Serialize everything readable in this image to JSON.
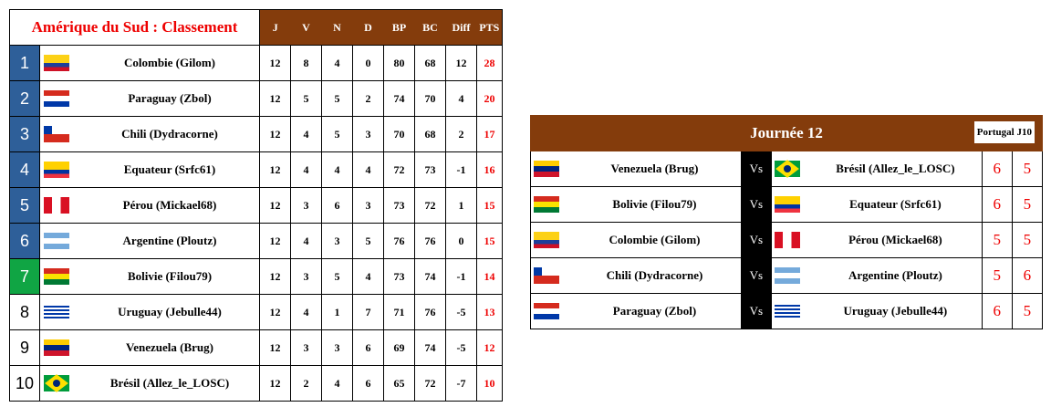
{
  "standings": {
    "title": "Amérique du Sud : Classement",
    "columns": [
      "J",
      "V",
      "N",
      "D",
      "BP",
      "BC",
      "Diff",
      "PTS"
    ],
    "rows": [
      {
        "rank": "1",
        "flag": "colombia",
        "team": "Colombie (Gilom)",
        "J": "12",
        "V": "8",
        "N": "4",
        "D": "0",
        "BP": "80",
        "BC": "68",
        "Diff": "12",
        "PTS": "28",
        "rank_color": "blue"
      },
      {
        "rank": "2",
        "flag": "paraguay",
        "team": "Paraguay (Zbol)",
        "J": "12",
        "V": "5",
        "N": "5",
        "D": "2",
        "BP": "74",
        "BC": "70",
        "Diff": "4",
        "PTS": "20",
        "rank_color": "blue"
      },
      {
        "rank": "3",
        "flag": "chile",
        "team": "Chili (Dydracorne)",
        "J": "12",
        "V": "4",
        "N": "5",
        "D": "3",
        "BP": "70",
        "BC": "68",
        "Diff": "2",
        "PTS": "17",
        "rank_color": "blue"
      },
      {
        "rank": "4",
        "flag": "ecuador",
        "team": "Equateur (Srfc61)",
        "J": "12",
        "V": "4",
        "N": "4",
        "D": "4",
        "BP": "72",
        "BC": "73",
        "Diff": "-1",
        "PTS": "16",
        "rank_color": "blue"
      },
      {
        "rank": "5",
        "flag": "peru",
        "team": "Pérou (Mickael68)",
        "J": "12",
        "V": "3",
        "N": "6",
        "D": "3",
        "BP": "73",
        "BC": "72",
        "Diff": "1",
        "PTS": "15",
        "rank_color": "blue"
      },
      {
        "rank": "6",
        "flag": "argentina",
        "team": "Argentine (Ploutz)",
        "J": "12",
        "V": "4",
        "N": "3",
        "D": "5",
        "BP": "76",
        "BC": "76",
        "Diff": "0",
        "PTS": "15",
        "rank_color": "blue"
      },
      {
        "rank": "7",
        "flag": "bolivia",
        "team": "Bolivie (Filou79)",
        "J": "12",
        "V": "3",
        "N": "5",
        "D": "4",
        "BP": "73",
        "BC": "74",
        "Diff": "-1",
        "PTS": "14",
        "rank_color": "green"
      },
      {
        "rank": "8",
        "flag": "uruguay",
        "team": "Uruguay (Jebulle44)",
        "J": "12",
        "V": "4",
        "N": "1",
        "D": "7",
        "BP": "71",
        "BC": "76",
        "Diff": "-5",
        "PTS": "13",
        "rank_color": "none"
      },
      {
        "rank": "9",
        "flag": "venezuela",
        "team": "Venezuela (Brug)",
        "J": "12",
        "V": "3",
        "N": "3",
        "D": "6",
        "BP": "69",
        "BC": "74",
        "Diff": "-5",
        "PTS": "12",
        "rank_color": "none"
      },
      {
        "rank": "10",
        "flag": "brazil",
        "team": "Brésil (Allez_le_LOSC)",
        "J": "12",
        "V": "2",
        "N": "4",
        "D": "6",
        "BP": "65",
        "BC": "72",
        "Diff": "-7",
        "PTS": "10",
        "rank_color": "none"
      }
    ]
  },
  "matchday": {
    "title": "Journée 12",
    "badge": "Portugal J10",
    "vs_label": "Vs",
    "matches": [
      {
        "home_flag": "venezuela",
        "home": "Venezuela (Brug)",
        "away_flag": "brazil",
        "away": "Brésil (Allez_le_LOSC)",
        "score1": "6",
        "score2": "5"
      },
      {
        "home_flag": "bolivia",
        "home": "Bolivie (Filou79)",
        "away_flag": "ecuador",
        "away": "Equateur (Srfc61)",
        "score1": "6",
        "score2": "5"
      },
      {
        "home_flag": "colombia",
        "home": "Colombie (Gilom)",
        "away_flag": "peru",
        "away": "Pérou (Mickael68)",
        "score1": "5",
        "score2": "5"
      },
      {
        "home_flag": "chile",
        "home": "Chili (Dydracorne)",
        "away_flag": "argentina",
        "away": "Argentine (Ploutz)",
        "score1": "5",
        "score2": "6"
      },
      {
        "home_flag": "paraguay",
        "home": "Paraguay (Zbol)",
        "away_flag": "uruguay",
        "away": "Uruguay (Jebulle44)",
        "score1": "6",
        "score2": "5"
      }
    ]
  },
  "colors": {
    "header_brown": "#843C0C",
    "rank_blue": "#2E5F99",
    "rank_green": "#10A544",
    "points_red": "#EE0000"
  }
}
